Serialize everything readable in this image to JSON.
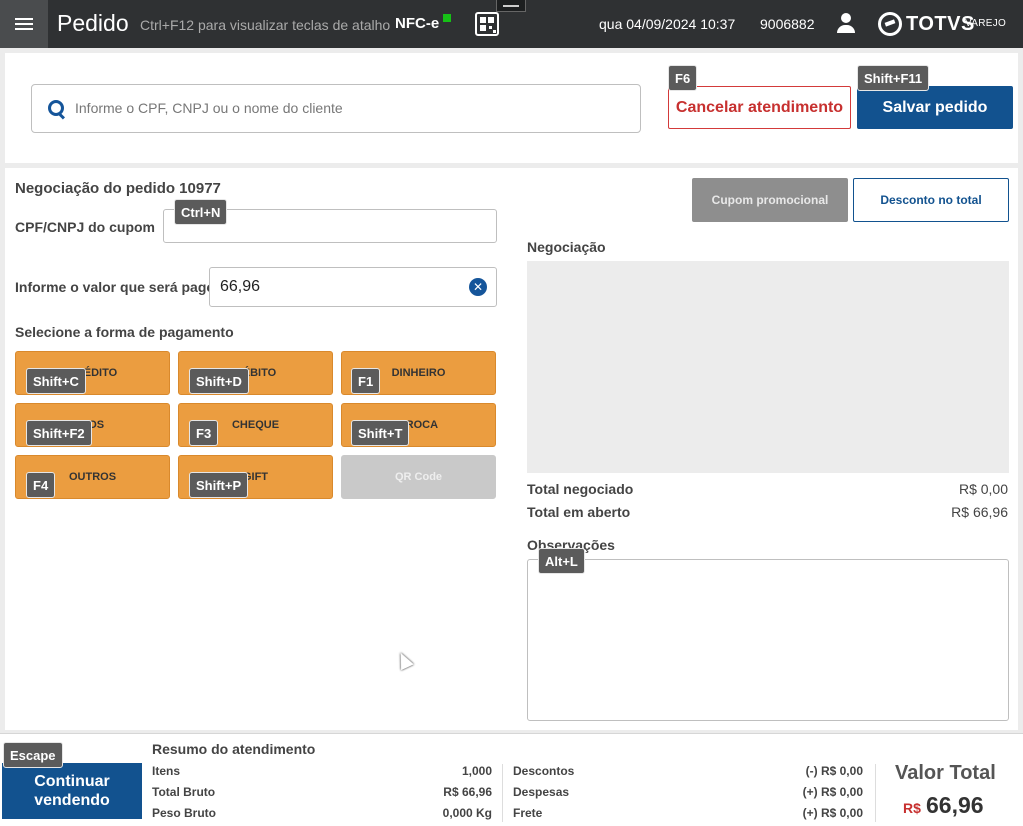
{
  "header": {
    "title": "Pedido",
    "hint": "Ctrl+F12 para visualizar teclas de atalho",
    "doc_type": "NFC-e",
    "datetime": "qua 04/09/2024 10:37",
    "code": "9006882",
    "brand": "TOTVS",
    "brand_sub": "VAREJO",
    "status_color": "#16c016"
  },
  "search": {
    "placeholder": "Informe o CPF, CNPJ ou o nome do cliente"
  },
  "actions": {
    "cancel_label": "Cancelar atendimento",
    "cancel_shortcut": "F6",
    "save_label": "Salvar pedido",
    "save_shortcut": "Shift+F11"
  },
  "negotiation": {
    "title": "Negociação do pedido 10977",
    "cpf_label": "CPF/CNPJ do cupom",
    "cpf_shortcut": "Ctrl+N",
    "cpf_value": "",
    "value_label": "Informe o valor que será pago",
    "value": "66,96",
    "payment_label": "Selecione a forma de pagamento",
    "payments": [
      {
        "label": "CRÉDITO",
        "shortcut": "Shift+C"
      },
      {
        "label": "DÉBITO",
        "shortcut": "Shift+D"
      },
      {
        "label": "DINHEIRO",
        "shortcut": "F1"
      },
      {
        "label": "POS",
        "shortcut": "Shift+F2"
      },
      {
        "label": "CHEQUE",
        "shortcut": "F3"
      },
      {
        "label": "TROCA",
        "shortcut": "Shift+T"
      },
      {
        "label": "OUTROS",
        "shortcut": "F4"
      },
      {
        "label": "GIFT",
        "shortcut": "Shift+P"
      },
      {
        "label": "QR Code",
        "shortcut": ""
      }
    ]
  },
  "right": {
    "cupom_label": "Cupom promocional",
    "desconto_label": "Desconto no total",
    "negociacao_label": "Negociação",
    "total_negociado_label": "Total negociado",
    "total_negociado_value": "R$ 0,00",
    "total_aberto_label": "Total em aberto",
    "total_aberto_value": "R$ 66,96",
    "obs_label": "Observações",
    "obs_shortcut": "Alt+L"
  },
  "footer": {
    "continue_label": "Continuar vendendo",
    "continue_shortcut": "Escape",
    "summary_title": "Resumo do atendimento",
    "itens_label": "Itens",
    "itens_value": "1,000",
    "bruto_label": "Total Bruto",
    "bruto_value": "R$ 66,96",
    "peso_label": "Peso Bruto",
    "peso_value": "0,000 Kg",
    "descontos_label": "Descontos",
    "descontos_value": "(-) R$ 0,00",
    "despesas_label": "Despesas",
    "despesas_value": "(+) R$ 0,00",
    "frete_label": "Frete",
    "frete_value": "(+) R$ 0,00",
    "total_label": "Valor Total",
    "total_currency": "R$",
    "total_value": "66,96"
  }
}
